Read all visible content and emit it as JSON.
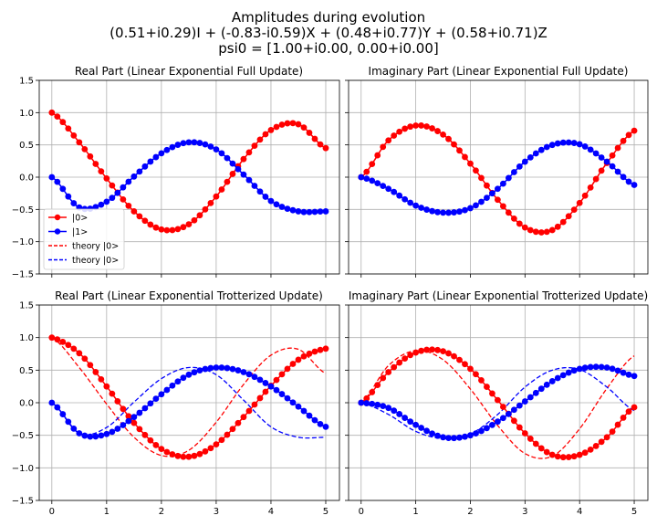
{
  "figure": {
    "title_lines": [
      "Amplitudes during evolution",
      "(0.51+i0.29)I + (-0.83-i0.59)X + (0.48+i0.77)Y + (0.58+i0.71)Z",
      "psi0 = [1.00+i0.00, 0.00+i0.00]"
    ]
  },
  "chart_data": [
    {
      "type": "line",
      "title": "Real Part (Linear Exponential Full Update)",
      "xlim": [
        -0.23,
        5.25
      ],
      "ylim": [
        -1.5,
        1.5
      ],
      "xticks": [
        0,
        1,
        2,
        3,
        4,
        5
      ],
      "yticks": [
        -1.5,
        -1.0,
        -0.5,
        0.0,
        0.5,
        1.0,
        1.5
      ],
      "yticklabels": [
        "−1.5",
        "−1.0",
        "−0.5",
        "0.0",
        "0.5",
        "1.0",
        "1.5"
      ],
      "grid": true,
      "legend": {
        "position": "lower-left",
        "entries": [
          "|0>",
          "|1>",
          "theory |0>",
          "theory |0>"
        ]
      },
      "series": [
        {
          "name": "|0>",
          "color": "#ff0000",
          "style": "markers-line",
          "x": [
            0,
            0.5,
            1,
            1.5,
            2,
            2.5,
            3,
            3.5,
            4,
            4.5,
            5
          ],
          "y": [
            1.0,
            0.54,
            -0.02,
            -0.53,
            -0.81,
            -0.73,
            -0.3,
            0.28,
            0.73,
            0.82,
            0.45
          ]
        },
        {
          "name": "|1>",
          "color": "#0000ff",
          "style": "markers-line",
          "x": [
            0,
            0.5,
            1,
            1.5,
            2,
            2.5,
            3,
            3.5,
            4,
            4.5,
            5
          ],
          "y": [
            0.0,
            -0.47,
            -0.38,
            0.01,
            0.37,
            0.54,
            0.43,
            0.04,
            -0.37,
            -0.53,
            -0.53
          ]
        },
        {
          "name": "theory |0>",
          "color": "#ff0000",
          "style": "dashed",
          "x": [
            0,
            0.5,
            1,
            1.5,
            2,
            2.5,
            3,
            3.5,
            4,
            4.5,
            5
          ],
          "y": [
            1.0,
            0.54,
            -0.02,
            -0.53,
            -0.81,
            -0.73,
            -0.3,
            0.28,
            0.73,
            0.82,
            0.45
          ]
        },
        {
          "name": "theory |0>",
          "color": "#0000ff",
          "style": "dashed",
          "x": [
            0,
            0.5,
            1,
            1.5,
            2,
            2.5,
            3,
            3.5,
            4,
            4.5,
            5
          ],
          "y": [
            0.0,
            -0.47,
            -0.38,
            0.01,
            0.37,
            0.54,
            0.43,
            0.04,
            -0.37,
            -0.53,
            -0.53
          ]
        }
      ]
    },
    {
      "type": "line",
      "title": "Imaginary Part (Linear Exponential Full Update)",
      "xlim": [
        -0.23,
        5.25
      ],
      "ylim": [
        -1.5,
        1.5
      ],
      "xticks": [
        0,
        1,
        2,
        3,
        4,
        5
      ],
      "yticks": [
        -1.5,
        -1.0,
        -0.5,
        0.0,
        0.5,
        1.0,
        1.5
      ],
      "grid": true,
      "series": [
        {
          "name": "|0>",
          "color": "#ff0000",
          "style": "markers-line",
          "x": [
            0,
            0.5,
            1,
            1.5,
            2,
            2.5,
            3,
            3.5,
            4,
            4.5,
            5
          ],
          "y": [
            0.0,
            0.57,
            0.8,
            0.66,
            0.21,
            -0.35,
            -0.78,
            -0.82,
            -0.4,
            0.22,
            0.72
          ]
        },
        {
          "name": "|1>",
          "color": "#0000ff",
          "style": "markers-line",
          "x": [
            0,
            0.5,
            1,
            1.5,
            2,
            2.5,
            3,
            3.5,
            4,
            4.5,
            5
          ],
          "y": [
            0.0,
            -0.18,
            -0.44,
            -0.55,
            -0.48,
            -0.18,
            0.24,
            0.5,
            0.51,
            0.24,
            -0.12
          ]
        },
        {
          "name": "theory |0>",
          "color": "#ff0000",
          "style": "dashed",
          "x": [
            0,
            0.5,
            1,
            1.5,
            2,
            2.5,
            3,
            3.5,
            4,
            4.5,
            5
          ],
          "y": [
            0.0,
            0.57,
            0.8,
            0.66,
            0.21,
            -0.35,
            -0.78,
            -0.82,
            -0.4,
            0.22,
            0.72
          ]
        },
        {
          "name": "theory |0>",
          "color": "#0000ff",
          "style": "dashed",
          "x": [
            0,
            0.5,
            1,
            1.5,
            2,
            2.5,
            3,
            3.5,
            4,
            4.5,
            5
          ],
          "y": [
            0.0,
            -0.18,
            -0.44,
            -0.55,
            -0.48,
            -0.18,
            0.24,
            0.5,
            0.51,
            0.24,
            -0.12
          ]
        }
      ]
    },
    {
      "type": "line",
      "title": "Real Part (Linear Exponential Trotterized Update)",
      "xlim": [
        -0.23,
        5.25
      ],
      "ylim": [
        -1.5,
        1.5
      ],
      "xticks": [
        0,
        1,
        2,
        3,
        4,
        5
      ],
      "xticklabels": [
        "0",
        "1",
        "2",
        "3",
        "4",
        "5"
      ],
      "yticks": [
        -1.5,
        -1.0,
        -0.5,
        0.0,
        0.5,
        1.0,
        1.5
      ],
      "yticklabels": [
        "−1.5",
        "−1.0",
        "−0.5",
        "0.0",
        "0.5",
        "1.0",
        "1.5"
      ],
      "grid": true,
      "series": [
        {
          "name": "|0>",
          "color": "#ff0000",
          "style": "markers-line",
          "x": [
            0,
            0.5,
            1,
            1.5,
            2,
            2.5,
            3,
            3.5,
            4,
            4.5,
            5
          ],
          "y": [
            1.0,
            0.76,
            0.25,
            -0.31,
            -0.71,
            -0.83,
            -0.64,
            -0.22,
            0.26,
            0.66,
            0.83
          ]
        },
        {
          "name": "|1>",
          "color": "#0000ff",
          "style": "markers-line",
          "x": [
            0,
            0.5,
            1,
            1.5,
            2,
            2.5,
            3,
            3.5,
            4,
            4.5,
            5
          ],
          "y": [
            0.0,
            -0.47,
            -0.48,
            -0.22,
            0.13,
            0.43,
            0.54,
            0.47,
            0.25,
            -0.06,
            -0.37
          ]
        },
        {
          "name": "theory |0>",
          "color": "#ff0000",
          "style": "dashed",
          "x": [
            0,
            0.5,
            1,
            1.5,
            2,
            2.5,
            3,
            3.5,
            4,
            4.5,
            5
          ],
          "y": [
            1.0,
            0.54,
            -0.02,
            -0.53,
            -0.81,
            -0.73,
            -0.3,
            0.28,
            0.73,
            0.82,
            0.45
          ]
        },
        {
          "name": "theory |0>",
          "color": "#0000ff",
          "style": "dashed",
          "x": [
            0,
            0.5,
            1,
            1.5,
            2,
            2.5,
            3,
            3.5,
            4,
            4.5,
            5
          ],
          "y": [
            0.0,
            -0.47,
            -0.38,
            0.01,
            0.37,
            0.54,
            0.43,
            0.04,
            -0.37,
            -0.53,
            -0.53
          ]
        }
      ]
    },
    {
      "type": "line",
      "title": "Imaginary Part (Linear Exponential Trotterized Update)",
      "xlim": [
        -0.23,
        5.25
      ],
      "ylim": [
        -1.5,
        1.5
      ],
      "xticks": [
        0,
        1,
        2,
        3,
        4,
        5
      ],
      "xticklabels": [
        "0",
        "1",
        "2",
        "3",
        "4",
        "5"
      ],
      "yticks": [
        -1.5,
        -1.0,
        -0.5,
        0.0,
        0.5,
        1.0,
        1.5
      ],
      "grid": true,
      "series": [
        {
          "name": "|0>",
          "color": "#ff0000",
          "style": "markers-line",
          "x": [
            0,
            0.5,
            1,
            1.5,
            2,
            2.5,
            3,
            3.5,
            4,
            4.5,
            5
          ],
          "y": [
            0.0,
            0.47,
            0.77,
            0.79,
            0.52,
            0.04,
            -0.47,
            -0.8,
            -0.8,
            -0.53,
            -0.07
          ]
        },
        {
          "name": "|1>",
          "color": "#0000ff",
          "style": "markers-line",
          "x": [
            0,
            0.5,
            1,
            1.5,
            2,
            2.5,
            3,
            3.5,
            4,
            4.5,
            5
          ],
          "y": [
            0.0,
            -0.08,
            -0.34,
            -0.53,
            -0.5,
            -0.29,
            0.02,
            0.33,
            0.52,
            0.54,
            0.41
          ]
        },
        {
          "name": "theory |0>",
          "color": "#ff0000",
          "style": "dashed",
          "x": [
            0,
            0.5,
            1,
            1.5,
            2,
            2.5,
            3,
            3.5,
            4,
            4.5,
            5
          ],
          "y": [
            0.0,
            0.57,
            0.8,
            0.66,
            0.21,
            -0.35,
            -0.78,
            -0.82,
            -0.4,
            0.22,
            0.72
          ]
        },
        {
          "name": "theory |0>",
          "color": "#0000ff",
          "style": "dashed",
          "x": [
            0,
            0.5,
            1,
            1.5,
            2,
            2.5,
            3,
            3.5,
            4,
            4.5,
            5
          ],
          "y": [
            0.0,
            -0.18,
            -0.44,
            -0.55,
            -0.48,
            -0.18,
            0.24,
            0.5,
            0.51,
            0.24,
            -0.12
          ]
        }
      ]
    }
  ]
}
